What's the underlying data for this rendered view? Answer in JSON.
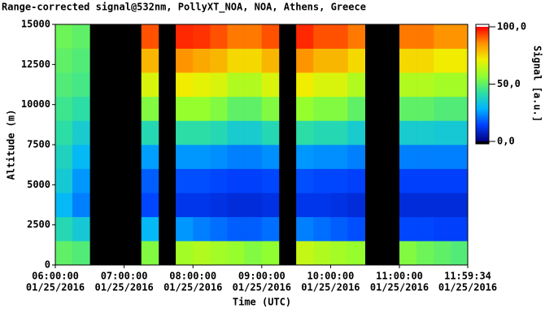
{
  "chart_data": {
    "type": "heatmap",
    "title": "Range-corrected signal@532nm, PollyXT_NOA, NOA, Athens, Greece",
    "xlabel": "Time (UTC)",
    "ylabel": "Altitude (m)",
    "colorbar_label": "Signal [a.u.]",
    "x": [
      "06:00:00",
      "06:15:00",
      "06:30:00",
      "06:45:00",
      "07:00:00",
      "07:15:00",
      "07:30:00",
      "07:45:00",
      "08:00:00",
      "08:15:00",
      "08:30:00",
      "08:45:00",
      "09:00:00",
      "09:15:00",
      "09:30:00",
      "09:45:00",
      "10:00:00",
      "10:15:00",
      "10:30:00",
      "10:45:00",
      "11:00:00",
      "11:15:00",
      "11:30:00",
      "11:45:00"
    ],
    "xlim": [
      "06:00:00",
      "11:59:34"
    ],
    "xticks": [
      {
        "value": "06:00:00",
        "label": [
          "06:00:00",
          "01/25/2016"
        ]
      },
      {
        "value": "07:00:00",
        "label": [
          "07:00:00",
          "01/25/2016"
        ]
      },
      {
        "value": "08:00:00",
        "label": [
          "08:00:00",
          "01/25/2016"
        ]
      },
      {
        "value": "09:00:00",
        "label": [
          "09:00:00",
          "01/25/2016"
        ]
      },
      {
        "value": "10:00:00",
        "label": [
          "10:00:00",
          "01/25/2016"
        ]
      },
      {
        "value": "11:00:00",
        "label": [
          "11:00:00",
          "01/25/2016"
        ]
      },
      {
        "value": "11:59:34",
        "label": [
          "11:59:34",
          "01/25/2016"
        ]
      }
    ],
    "y": [
      0,
      1500,
      3000,
      4500,
      6000,
      7500,
      9000,
      10500,
      12000,
      13500
    ],
    "ylim": [
      0,
      15000
    ],
    "yticks": [
      0,
      2500,
      5000,
      7500,
      10000,
      12500,
      15000
    ],
    "z": [
      [
        50,
        48,
        null,
        null,
        null,
        55,
        null,
        60,
        62,
        60,
        58,
        55,
        57,
        null,
        65,
        62,
        60,
        58,
        null,
        null,
        55,
        52,
        50,
        48
      ],
      [
        40,
        35,
        null,
        null,
        null,
        30,
        null,
        25,
        22,
        20,
        18,
        18,
        20,
        null,
        22,
        20,
        18,
        16,
        null,
        null,
        15,
        15,
        14,
        14
      ],
      [
        30,
        22,
        null,
        null,
        null,
        15,
        null,
        12,
        12,
        11,
        10,
        10,
        11,
        null,
        12,
        12,
        11,
        10,
        null,
        null,
        10,
        10,
        10,
        10
      ],
      [
        35,
        25,
        null,
        null,
        null,
        18,
        null,
        16,
        16,
        15,
        14,
        14,
        15,
        null,
        16,
        15,
        15,
        14,
        null,
        null,
        14,
        14,
        14,
        14
      ],
      [
        38,
        30,
        null,
        null,
        null,
        26,
        null,
        25,
        25,
        24,
        22,
        22,
        24,
        null,
        25,
        24,
        24,
        22,
        null,
        null,
        22,
        22,
        22,
        22
      ],
      [
        42,
        36,
        null,
        null,
        null,
        40,
        null,
        42,
        42,
        40,
        36,
        36,
        40,
        null,
        42,
        40,
        40,
        36,
        null,
        null,
        36,
        36,
        35,
        35
      ],
      [
        45,
        42,
        null,
        null,
        null,
        55,
        null,
        58,
        58,
        55,
        50,
        50,
        55,
        null,
        58,
        55,
        55,
        50,
        null,
        null,
        50,
        50,
        48,
        48
      ],
      [
        48,
        46,
        null,
        null,
        null,
        68,
        null,
        72,
        70,
        68,
        62,
        62,
        68,
        null,
        72,
        68,
        68,
        62,
        null,
        null,
        62,
        62,
        60,
        60
      ],
      [
        50,
        48,
        null,
        null,
        null,
        80,
        null,
        85,
        82,
        80,
        75,
        75,
        80,
        null,
        85,
        80,
        80,
        75,
        null,
        null,
        75,
        75,
        72,
        72
      ],
      [
        52,
        50,
        null,
        null,
        null,
        92,
        null,
        96,
        95,
        92,
        88,
        88,
        92,
        null,
        96,
        92,
        92,
        88,
        null,
        null,
        88,
        88,
        85,
        85
      ]
    ],
    "zlim": [
      0,
      100
    ],
    "zticks": [
      {
        "value": 0,
        "label": "0,0"
      },
      {
        "value": 50,
        "label": "50,0"
      },
      {
        "value": 100,
        "label": "100,0"
      }
    ],
    "colormap": [
      "#00007f",
      "#0040ff",
      "#00b4ff",
      "#30e0a0",
      "#90ff30",
      "#f0f000",
      "#ff9000",
      "#ff0000"
    ],
    "gap_color": "#000000"
  }
}
